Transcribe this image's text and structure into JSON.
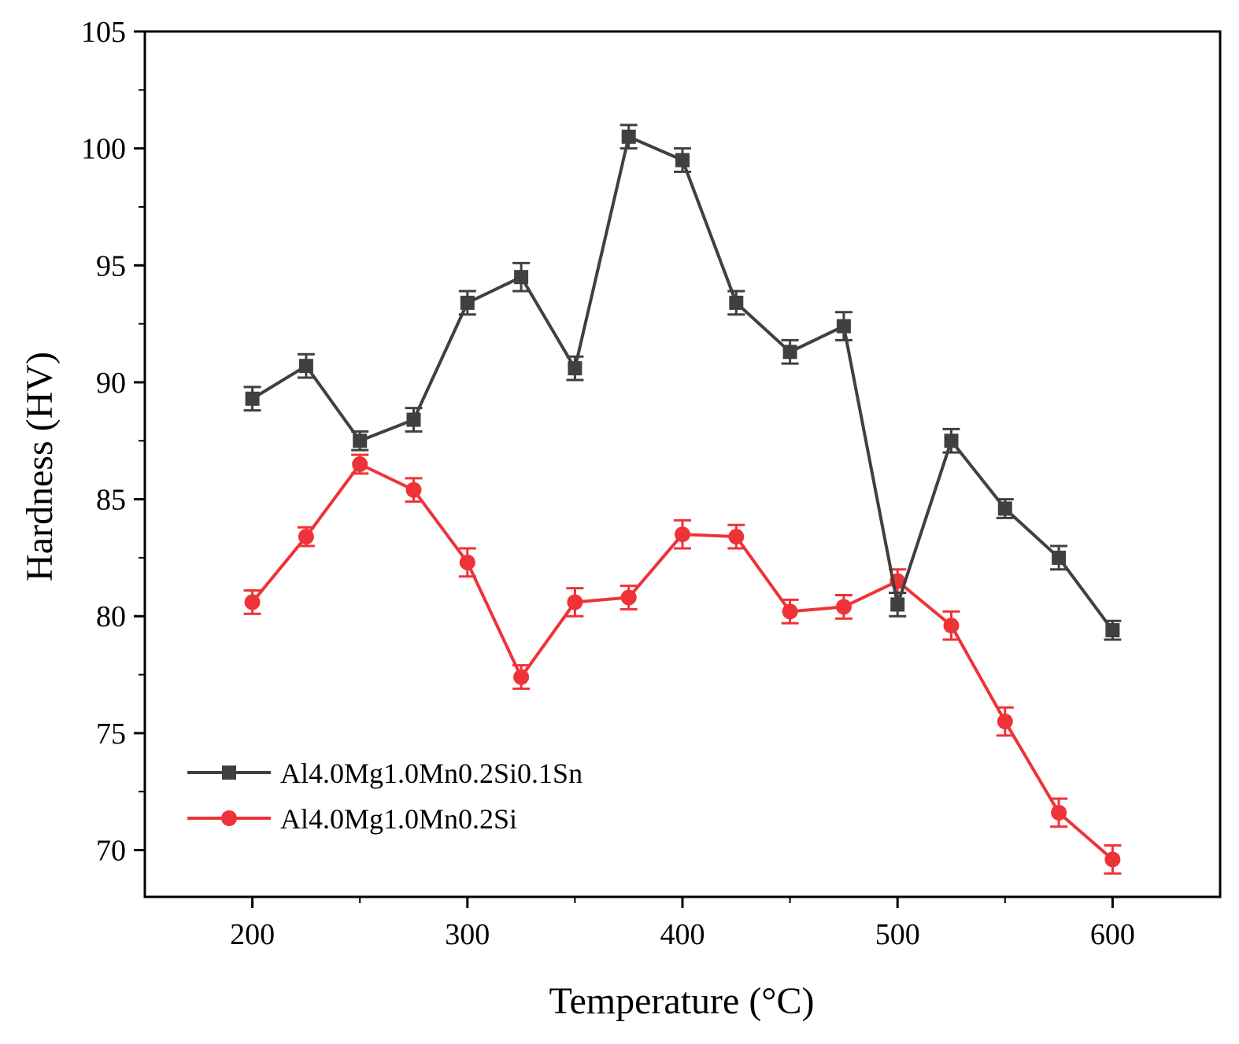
{
  "chart_data": {
    "type": "line",
    "xlabel": "Temperature (°C)",
    "ylabel": "Hardness (HV)",
    "xlim": [
      150,
      650
    ],
    "ylim": [
      68,
      105
    ],
    "xticks": [
      200,
      300,
      400,
      500,
      600
    ],
    "yticks": [
      70,
      75,
      80,
      85,
      90,
      95,
      100,
      105
    ],
    "x_minor_step": 50,
    "y_minor_step": 2.5,
    "grid": false,
    "legend_position": "bottom-left",
    "x": [
      200,
      225,
      250,
      275,
      300,
      325,
      350,
      375,
      400,
      425,
      450,
      475,
      500,
      525,
      550,
      575,
      600
    ],
    "series": [
      {
        "name": "Al4.0Mg1.0Mn0.2Si0.1Sn",
        "color": "#404040",
        "marker": "square",
        "values": [
          89.3,
          90.7,
          87.5,
          88.4,
          93.4,
          94.5,
          90.6,
          100.5,
          99.5,
          93.4,
          91.3,
          92.4,
          80.5,
          87.5,
          84.6,
          82.5,
          79.4
        ],
        "errors": [
          0.5,
          0.5,
          0.4,
          0.5,
          0.5,
          0.6,
          0.5,
          0.5,
          0.5,
          0.5,
          0.5,
          0.6,
          0.5,
          0.5,
          0.4,
          0.5,
          0.4
        ]
      },
      {
        "name": "Al4.0Mg1.0Mn0.2Si",
        "color": "#ee3338",
        "marker": "circle",
        "values": [
          80.6,
          83.4,
          86.5,
          85.4,
          82.3,
          77.4,
          80.6,
          80.8,
          83.5,
          83.4,
          80.2,
          80.4,
          81.5,
          79.6,
          75.5,
          71.6,
          69.6
        ],
        "errors": [
          0.5,
          0.4,
          0.4,
          0.5,
          0.6,
          0.5,
          0.6,
          0.5,
          0.6,
          0.5,
          0.5,
          0.5,
          0.5,
          0.6,
          0.6,
          0.6,
          0.6
        ]
      }
    ]
  }
}
